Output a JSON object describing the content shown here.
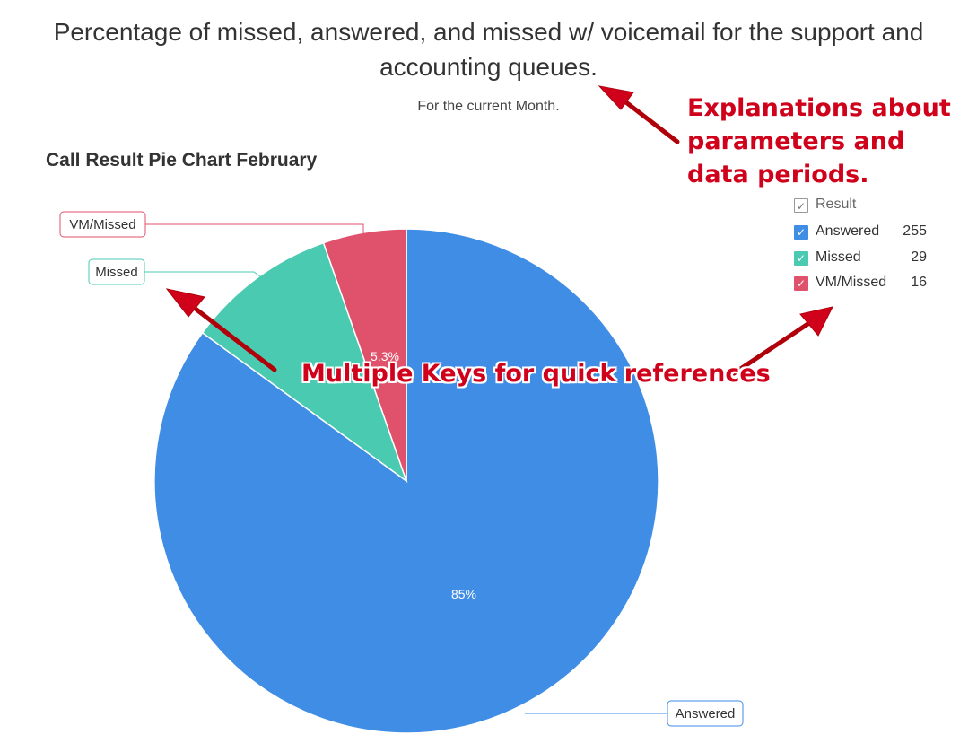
{
  "header": {
    "title": "Percentage of missed, answered, and missed w/ voicemail for the support and accounting queues.",
    "subtitle": "For the current Month."
  },
  "chart_data": {
    "type": "pie",
    "title": "Call Result Pie Chart February",
    "categories": [
      "Answered",
      "Missed",
      "VM/Missed"
    ],
    "values": [
      255,
      29,
      16
    ],
    "colors": [
      "#3f8de5",
      "#4bcab2",
      "#e0526c"
    ],
    "data_labels": [
      "85%",
      "",
      "5.3%"
    ],
    "legend": {
      "header": "Result",
      "placement": "top-right"
    }
  },
  "annotations": {
    "top": "Explanations about parameters and data periods.",
    "middle": "Multiple Keys for quick references",
    "color": "#d0021b"
  }
}
